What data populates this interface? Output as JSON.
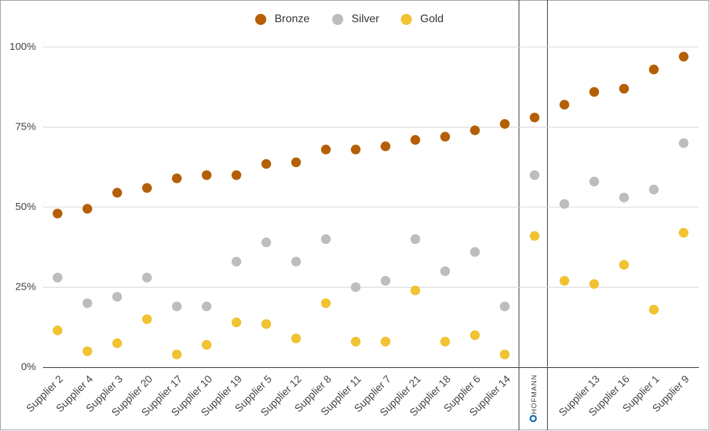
{
  "chart_data": {
    "type": "scatter",
    "categories": [
      "Supplier 2",
      "Supplier 4",
      "Supplier 3",
      "Supplier 20",
      "Supplier 17",
      "Supplier 10",
      "Supplier 19",
      "Supplier 5",
      "Supplier 12",
      "Supplier 8",
      "Supplier 11",
      "Supplier 7",
      "Supplier 21",
      "Supplier 18",
      "Supplier 6",
      "Supplier 14",
      "HOFMANN",
      null,
      "Supplier 13",
      "Supplier 16",
      "Supplier 1",
      "Supplier 9"
    ],
    "series": [
      {
        "name": "Bronze",
        "color": "#b45f06",
        "values": [
          48,
          49.5,
          54.5,
          56,
          59,
          60,
          60,
          63.5,
          64,
          68,
          68,
          69,
          71,
          72,
          74,
          76,
          78,
          82,
          86,
          87,
          93,
          97
        ]
      },
      {
        "name": "Silver",
        "color": "#bdbdbd",
        "values": [
          28,
          20,
          22,
          28,
          19,
          19,
          33,
          39,
          33,
          40,
          25,
          27,
          40,
          30,
          36,
          19,
          60,
          51,
          58,
          53,
          55.5,
          70
        ]
      },
      {
        "name": "Gold",
        "color": "#f1c232",
        "values": [
          11.5,
          5,
          7.5,
          15,
          4,
          7,
          14,
          13.5,
          9,
          20,
          8,
          8,
          24,
          8,
          10,
          4,
          41,
          27,
          26,
          32,
          18,
          42
        ]
      }
    ],
    "ylim": [
      0,
      114.7
    ],
    "yticks": [
      {
        "value": 0,
        "label": "0%"
      },
      {
        "value": 25,
        "label": "25%"
      },
      {
        "value": 50,
        "label": "50%"
      },
      {
        "value": 75,
        "label": "75%"
      },
      {
        "value": 100,
        "label": "100%"
      }
    ],
    "grid": true,
    "legend": "top"
  }
}
